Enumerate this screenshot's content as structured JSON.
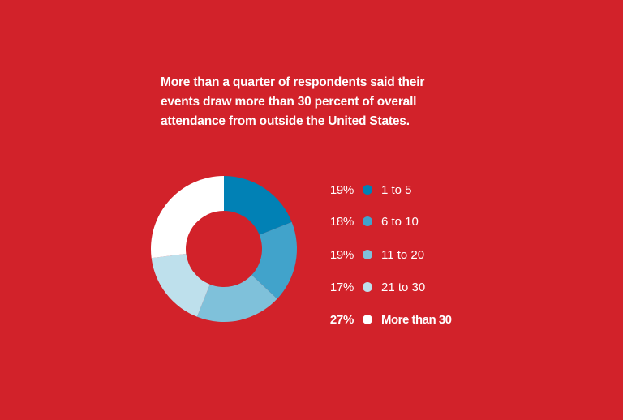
{
  "chart_data": {
    "type": "pie",
    "variant": "donut",
    "title": "More than a quarter of respondents said their events draw more than 30 percent of overall attendance from outside the United States.",
    "title_lines": [
      "More than a quarter of respondents said their",
      "events draw more than 30 percent of overall",
      "attendance from outside the United States."
    ],
    "unit": "%",
    "slices": [
      {
        "label": "1 to 5",
        "value": 19,
        "pct_label": "19%",
        "color": "#0181B5"
      },
      {
        "label": "6 to 10",
        "value": 18,
        "pct_label": "18%",
        "color": "#41A3CB"
      },
      {
        "label": "11 to 20",
        "value": 19,
        "pct_label": "19%",
        "color": "#7FC1DA"
      },
      {
        "label": "21 to 30",
        "value": 17,
        "pct_label": "17%",
        "color": "#BEE0EC"
      },
      {
        "label": "More than 30",
        "value": 27,
        "pct_label": "27%",
        "color": "#FFFFFF",
        "emphasis": true
      }
    ],
    "legend_position": "right",
    "background": "#D2222A"
  }
}
